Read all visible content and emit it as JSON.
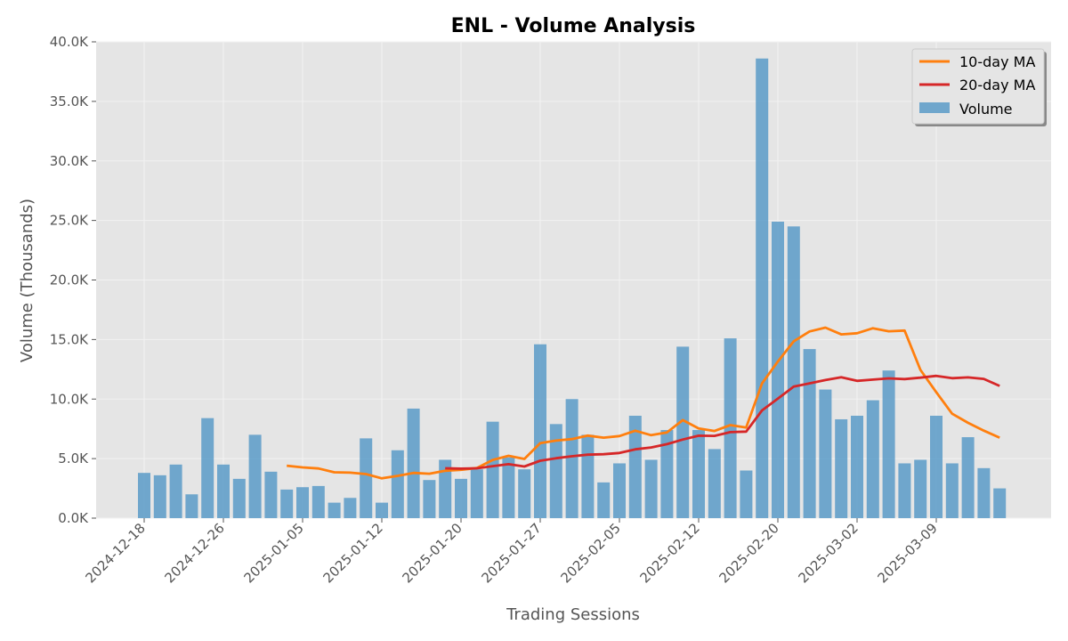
{
  "chart_data": {
    "type": "bar",
    "title": "ENL - Volume Analysis",
    "xlabel": "Trading Sessions",
    "ylabel": "Volume (Thousands)",
    "ylim": [
      0,
      40000
    ],
    "yticks": [
      {
        "value": 0,
        "label": "0.0K"
      },
      {
        "value": 5000,
        "label": "5.0K"
      },
      {
        "value": 10000,
        "label": "10.0K"
      },
      {
        "value": 15000,
        "label": "15.0K"
      },
      {
        "value": 20000,
        "label": "20.0K"
      },
      {
        "value": 25000,
        "label": "25.0K"
      },
      {
        "value": 30000,
        "label": "30.0K"
      },
      {
        "value": 35000,
        "label": "35.0K"
      },
      {
        "value": 40000,
        "label": "40.0K"
      }
    ],
    "xticks": [
      {
        "index": 0,
        "label": "2024-12-18"
      },
      {
        "index": 5,
        "label": "2024-12-26"
      },
      {
        "index": 10,
        "label": "2025-01-05"
      },
      {
        "index": 15,
        "label": "2025-01-12"
      },
      {
        "index": 20,
        "label": "2025-01-20"
      },
      {
        "index": 25,
        "label": "2025-01-27"
      },
      {
        "index": 30,
        "label": "2025-02-05"
      },
      {
        "index": 35,
        "label": "2025-02-12"
      },
      {
        "index": 40,
        "label": "2025-02-20"
      },
      {
        "index": 45,
        "label": "2025-03-02"
      },
      {
        "index": 50,
        "label": "2025-03-09"
      }
    ],
    "grid": true,
    "legend_position": "top-right",
    "series": [
      {
        "name": "Volume",
        "type": "bar",
        "color": "#5b9bc8",
        "values": [
          3800,
          3600,
          4500,
          2000,
          8400,
          4500,
          3300,
          7000,
          3900,
          2400,
          2600,
          2700,
          1300,
          1700,
          6700,
          1300,
          5700,
          9200,
          3200,
          4900,
          3300,
          4100,
          8100,
          5100,
          4100,
          14600,
          7900,
          10000,
          7000,
          3000,
          4600,
          8600,
          4900,
          7400,
          14400,
          7400,
          5800,
          15100,
          4000,
          38600,
          24900,
          24500,
          14200,
          10800,
          8300,
          8600,
          9900,
          12400,
          4600,
          4900,
          8600,
          4600,
          6800,
          4200,
          2500
        ]
      },
      {
        "name": "10-day MA",
        "type": "line",
        "color": "#ff7f0e",
        "values": [
          null,
          null,
          null,
          null,
          null,
          null,
          null,
          null,
          null,
          4400,
          4260,
          4170,
          3850,
          3820,
          3700,
          3340,
          3550,
          3800,
          3730,
          3980,
          4060,
          4210,
          4890,
          5230,
          4970,
          6300,
          6510,
          6640,
          6930,
          6760,
          6890,
          7340,
          6970,
          7200,
          8230,
          7540,
          7320,
          7810,
          7610,
          11310,
          13150,
          14850,
          15680,
          16000,
          15430,
          15530,
          15950,
          15690,
          15750,
          12450,
          10570,
          8770,
          8010,
          7350,
          6760
        ]
      },
      {
        "name": "20-day MA",
        "type": "line",
        "color": "#d62728",
        "values": [
          null,
          null,
          null,
          null,
          null,
          null,
          null,
          null,
          null,
          null,
          null,
          null,
          null,
          null,
          null,
          null,
          null,
          null,
          null,
          4190,
          4160,
          4190,
          4370,
          4530,
          4340,
          4820,
          5030,
          5200,
          5330,
          5370,
          5470,
          5780,
          5940,
          6210,
          6600,
          6920,
          6910,
          7220,
          7270,
          9050,
          10030,
          11050,
          11320,
          11600,
          11830,
          11530,
          11630,
          11740,
          11680,
          11800,
          11950,
          11750,
          11820,
          11690,
          11100
        ]
      }
    ]
  }
}
